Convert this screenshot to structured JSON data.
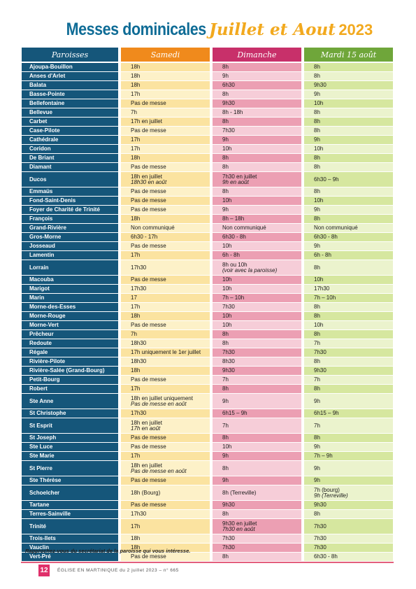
{
  "title": {
    "main": "Messes dominicales",
    "script": "Juillet et Aout",
    "year": "2023"
  },
  "headers": {
    "paroisses": "Paroisses",
    "samedi": "Samedi",
    "dimanche": "Dimanche",
    "mardi": "Mardi 15 août"
  },
  "rows": [
    {
      "p": "Ajoupa-Bouillon",
      "s": "18h",
      "d": "8h",
      "m": "8h"
    },
    {
      "p": "Anses d'Arlet",
      "s": "18h",
      "d": "9h",
      "m": "8h"
    },
    {
      "p": "Balata",
      "s": "18h",
      "d": "6h30",
      "m": "9h30"
    },
    {
      "p": "Basse-Pointe",
      "s": "17h",
      "d": "8h",
      "m": "9h"
    },
    {
      "p": "Bellefontaine",
      "s": "Pas de messe",
      "d": "9h30",
      "m": "10h"
    },
    {
      "p": "Bellevue",
      "s": "7h",
      "d": "8h - 18h",
      "m": "8h"
    },
    {
      "p": "Carbet",
      "s": "17h en juillet",
      "d": "8h",
      "m": "8h"
    },
    {
      "p": "Case-Pilote",
      "s": "Pas de messe",
      "d": "7h30",
      "m": "8h"
    },
    {
      "p": "Cathédrale",
      "s": "17h",
      "d": "9h",
      "m": "9h"
    },
    {
      "p": "Coridon",
      "s": "17h",
      "d": "10h",
      "m": "10h"
    },
    {
      "p": "De Briant",
      "s": "18h",
      "d": "8h",
      "m": "8h"
    },
    {
      "p": "Diamant",
      "s": "Pas de messe",
      "d": "8h",
      "m": "8h"
    },
    {
      "p": "Ducos",
      "s": "18h en juillet",
      "s2": "18h30 en août",
      "d": "7h30 en juillet",
      "d2": "9h en août",
      "m": "6h30 – 9h",
      "tall": true
    },
    {
      "p": "Emmaüs",
      "s": "Pas de messe",
      "d": "8h",
      "m": "8h"
    },
    {
      "p": "Fond-Saint-Denis",
      "s": "Pas de messe",
      "d": "10h",
      "m": "10h"
    },
    {
      "p": "Foyer de Charité de Trinité",
      "s": "Pas de messe",
      "d": "9h",
      "m": "9h"
    },
    {
      "p": "François",
      "s": "18h",
      "d": "8h – 18h",
      "m": "8h"
    },
    {
      "p": "Grand-Rivière",
      "s": "Non communiqué",
      "d": "Non communiqué",
      "m": "Non communiqué"
    },
    {
      "p": "Gros-Morne",
      "s": "6h30 - 17h",
      "d": "6h30 - 8h",
      "m": "6h30 - 8h"
    },
    {
      "p": "Josseaud",
      "s": "Pas de messe",
      "d": "10h",
      "m": "9h"
    },
    {
      "p": "Lamentin",
      "s": "17h",
      "d": "6h - 8h",
      "m": "6h - 8h"
    },
    {
      "p": "Lorrain",
      "s": "17h30",
      "d": "8h ou 10h",
      "d2": "(voir avec la paroisse)",
      "m": "8h",
      "tall": true
    },
    {
      "p": "Macouba",
      "s": "Pas de messe",
      "d": "10h",
      "m": "10h"
    },
    {
      "p": "Marigot",
      "s": "17h30",
      "d": "10h",
      "m": "17h30"
    },
    {
      "p": "Marin",
      "s": "17",
      "d": "7h – 10h",
      "m": "7h – 10h"
    },
    {
      "p": "Morne-des-Esses",
      "s": "17h",
      "d": "7h30",
      "m": "8h"
    },
    {
      "p": "Morne-Rouge",
      "s": "18h",
      "d": "10h",
      "m": "8h"
    },
    {
      "p": "Morne-Vert",
      "s": "Pas de messe",
      "d": "10h",
      "m": "10h"
    },
    {
      "p": "Prêcheur",
      "s": "7h",
      "d": "8h",
      "m": "8h"
    },
    {
      "p": "Redoute",
      "s": "18h30",
      "d": "8h",
      "m": "7h"
    },
    {
      "p": "Régale",
      "s": "17h uniquement le 1er juillet",
      "d": "7h30",
      "m": "7h30"
    },
    {
      "p": "Rivière-Pilote",
      "s": "18h30",
      "d": "8h30",
      "m": "8h"
    },
    {
      "p": "Rivière-Salée (Grand-Bourg)",
      "s": "18h",
      "d": "9h30",
      "m": "9h30"
    },
    {
      "p": "Petit-Bourg",
      "s": "Pas de messe",
      "d": "7h",
      "m": "7h"
    },
    {
      "p": "Robert",
      "s": "17h",
      "d": "8h",
      "m": "8h"
    },
    {
      "p": "Ste Anne",
      "s": "18h en juillet uniquement",
      "s2": "Pas de messe en août",
      "d": "9h",
      "m": "9h",
      "tall": true
    },
    {
      "p": "St Christophe",
      "s": "17h30",
      "d": "6h15 – 9h",
      "m": "6h15 – 9h"
    },
    {
      "p": "St Esprit",
      "s": "18h en juillet",
      "s2": "17h en août",
      "d": "7h",
      "m": "7h",
      "tall": true
    },
    {
      "p": "St Joseph",
      "s": "Pas de messe",
      "d": "8h",
      "m": "8h"
    },
    {
      "p": "Ste Luce",
      "s": "Pas de messe",
      "d": "10h",
      "m": "9h"
    },
    {
      "p": "Ste Marie",
      "s": "17h",
      "d": "9h",
      "m": "7h – 9h"
    },
    {
      "p": "St Pierre",
      "s": "18h en juillet",
      "s2": "Pas de messe en août",
      "d": "8h",
      "m": "9h",
      "tall": true
    },
    {
      "p": "Ste Thérèse",
      "s": "Pas de messe",
      "d": "9h",
      "m": "9h"
    },
    {
      "p": "Schoelcher",
      "s": "18h (Bourg)",
      "d": "8h (Terreville)",
      "m": "7h (bourg)",
      "m2": "9h (Terreville)",
      "tall": true
    },
    {
      "p": "Tartane",
      "s": "Pas de messe",
      "d": "9h30",
      "m": "9h30"
    },
    {
      "p": "Terres-Sainville",
      "s": "17h30",
      "d": "8h",
      "m": "8h"
    },
    {
      "p": "Trinité",
      "s": "17h",
      "d": "9h30 en juillet",
      "d2": "7h30 en août",
      "m": "7h30",
      "tall": true
    },
    {
      "p": "Trois-Ilets",
      "s": "18h",
      "d": "7h30",
      "m": "7h30"
    },
    {
      "p": "Vauclin",
      "s": "18h",
      "d": "7h30",
      "m": "7h30"
    },
    {
      "p": "Vert-Pré",
      "s": "Pas de messe",
      "d": "8h",
      "m": "6h30 - 8h"
    }
  ],
  "note": "Rapprochez-vous du secrétariat de la paroisse qui vous intéresse.",
  "footer": {
    "page": "12",
    "text": "ÉGLISE EN MARTINIQUE du 2 juillet 2023 – n° 665"
  },
  "colors": {
    "paroisses": "#15567a",
    "samedi": "#f08a1c",
    "dimanche": "#c8306a",
    "mardi": "#6fa63a",
    "title": "#0f6c96",
    "accent": "#f2a91e"
  }
}
